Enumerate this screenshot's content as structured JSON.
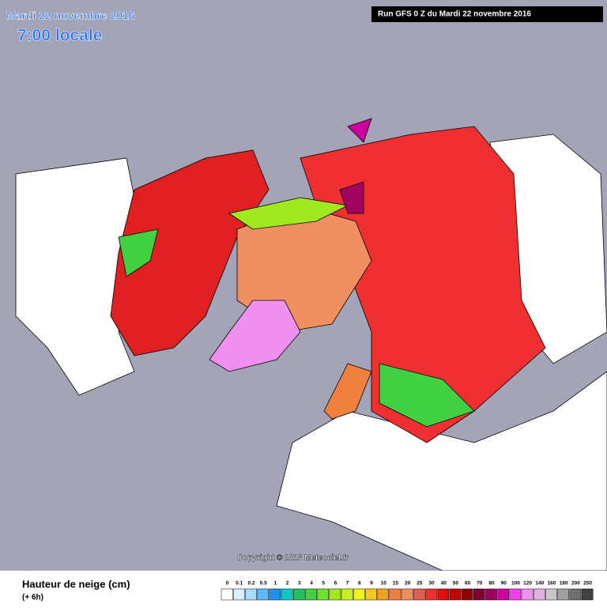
{
  "header": {
    "title": "Mardi 22 novembre 2016",
    "time": "7:00 locale",
    "run": "Run GFS 0 Z du Mardi 22 novembre 2016"
  },
  "copyright": "Copyright © 2016 Meteociel.fr",
  "footer": {
    "title": "Hauteur de neige (cm)",
    "step": "(+ 6h)"
  },
  "legend": {
    "items": [
      {
        "label": "0",
        "color": "#ffffff"
      },
      {
        "label": "0.1",
        "color": "#d8f0ff"
      },
      {
        "label": "0.2",
        "color": "#a8dcff"
      },
      {
        "label": "0.5",
        "color": "#60b8ff"
      },
      {
        "label": "1",
        "color": "#2090f0"
      },
      {
        "label": "2",
        "color": "#10c8c0"
      },
      {
        "label": "3",
        "color": "#20c060"
      },
      {
        "label": "4",
        "color": "#40d040"
      },
      {
        "label": "5",
        "color": "#70e030"
      },
      {
        "label": "6",
        "color": "#a0e820"
      },
      {
        "label": "7",
        "color": "#c8f020"
      },
      {
        "label": "8",
        "color": "#f0f020"
      },
      {
        "label": "9",
        "color": "#f0c820"
      },
      {
        "label": "10",
        "color": "#f0a020"
      },
      {
        "label": "15",
        "color": "#f08040"
      },
      {
        "label": "20",
        "color": "#f09060"
      },
      {
        "label": "25",
        "color": "#e06050"
      },
      {
        "label": "30",
        "color": "#f03030"
      },
      {
        "label": "40",
        "color": "#e01010"
      },
      {
        "label": "50",
        "color": "#c00000"
      },
      {
        "label": "60",
        "color": "#900000"
      },
      {
        "label": "70",
        "color": "#800030"
      },
      {
        "label": "80",
        "color": "#a00060"
      },
      {
        "label": "90",
        "color": "#d000a0"
      },
      {
        "label": "100",
        "color": "#f040f0"
      },
      {
        "label": "120",
        "color": "#f090f0"
      },
      {
        "label": "140",
        "color": "#e0b0e0"
      },
      {
        "label": "160",
        "color": "#c8c8c8"
      },
      {
        "label": "180",
        "color": "#a0a0a0"
      },
      {
        "label": "200",
        "color": "#707070"
      },
      {
        "label": "250",
        "color": "#404040"
      }
    ]
  }
}
